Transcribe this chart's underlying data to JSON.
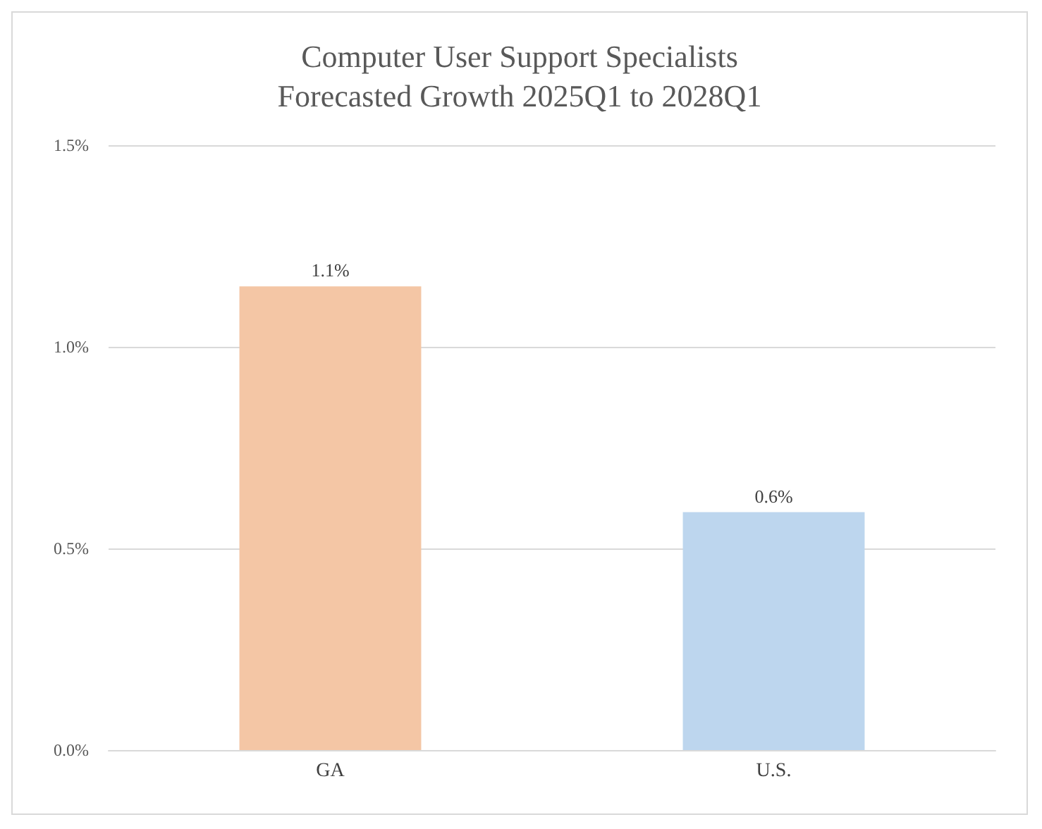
{
  "chart_data": {
    "type": "bar",
    "title": "Computer User Support Specialists\nForecasted Growth 2025Q1 to 2028Q1",
    "categories": [
      "GA",
      "U.S."
    ],
    "values": [
      1.15,
      0.59
    ],
    "colors": [
      "#f4c6a5",
      "#bdd6ee"
    ],
    "value_labels": [
      "1.1%",
      "0.6%"
    ],
    "ylim": [
      0,
      1.5
    ],
    "yticks": [
      {
        "value": 0,
        "label": "0.0%"
      },
      {
        "value": 0.5,
        "label": "0.5%"
      },
      {
        "value": 1,
        "label": "1.0%"
      },
      {
        "value": 1.5,
        "label": "1.5%"
      }
    ],
    "grid": "y"
  }
}
